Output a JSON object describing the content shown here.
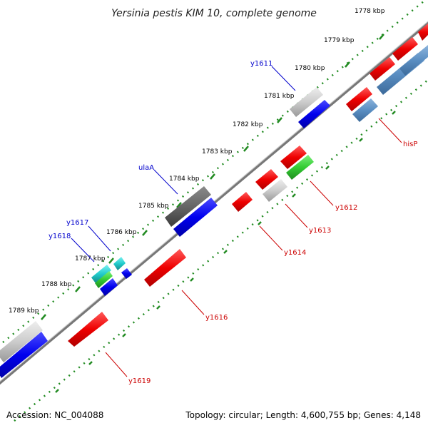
{
  "title": "Yersinia pestis KIM 10, complete genome",
  "accession": "Accession: NC_004088",
  "summary": "Topology: circular; Length: 4,600,755 bp; Genes: 4,148",
  "colors": {
    "backbone": "#8c8c8c",
    "ticks": "#228b22",
    "forward_label": "#0000cc",
    "reverse_label": "#cc0000"
  },
  "kbp_ticks": [
    {
      "label": "1778 kbp"
    },
    {
      "label": "1779 kbp"
    },
    {
      "label": "1780 kbp"
    },
    {
      "label": "1781 kbp"
    },
    {
      "label": "1782 kbp"
    },
    {
      "label": "1783 kbp"
    },
    {
      "label": "1784 kbp"
    },
    {
      "label": "1785 kbp"
    },
    {
      "label": "1786 kbp"
    },
    {
      "label": "1787 kbp"
    },
    {
      "label": "1788 kbp"
    },
    {
      "label": "1789 kbp"
    }
  ],
  "forward_genes": [
    {
      "name": "y1611"
    },
    {
      "name": "ulaA"
    },
    {
      "name": "y1617"
    },
    {
      "name": "y1618"
    }
  ],
  "reverse_genes": [
    {
      "name": "hisP"
    },
    {
      "name": "y1612"
    },
    {
      "name": "y1613"
    },
    {
      "name": "y1614"
    },
    {
      "name": "y1616"
    },
    {
      "name": "y1619"
    }
  ]
}
